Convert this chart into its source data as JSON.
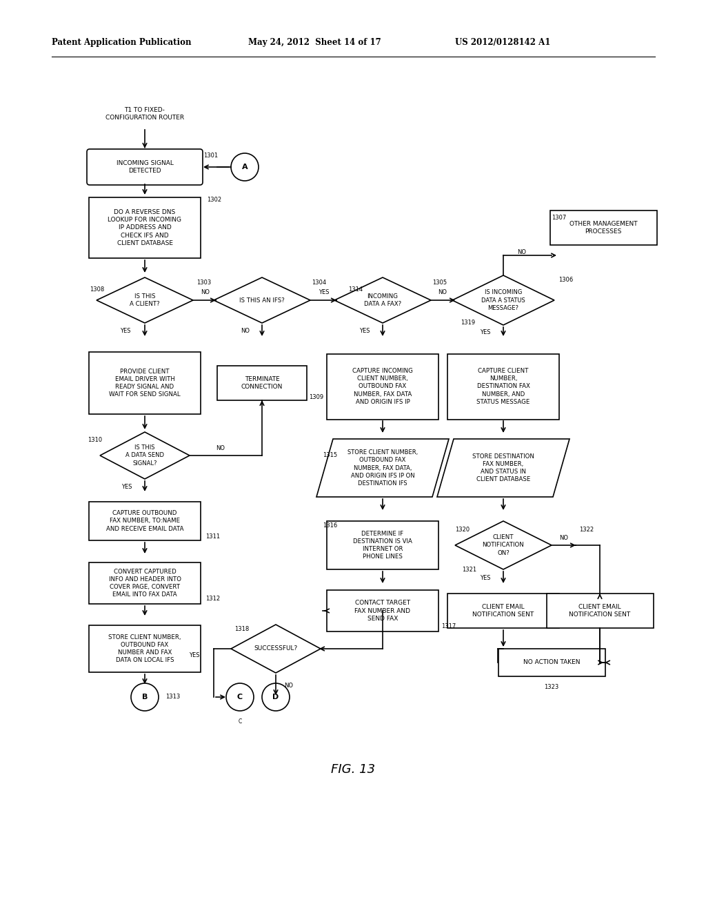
{
  "title_left": "Patent Application Publication",
  "title_mid": "May 24, 2012  Sheet 14 of 17",
  "title_right": "US 2012/0128142 A1",
  "fig_label": "FIG. 13",
  "background": "#ffffff",
  "line_color": "#000000",
  "text_color": "#000000",
  "font_size": 6.5
}
